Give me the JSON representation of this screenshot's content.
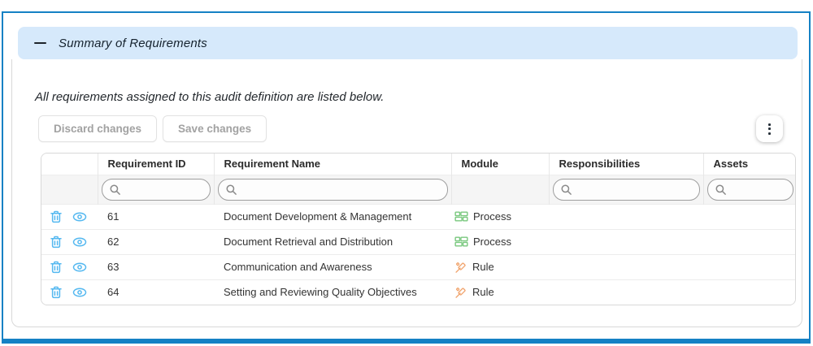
{
  "section": {
    "title": "Summary of Requirements",
    "collapse_icon": "minus-icon",
    "header_bg": "#d6e9fb",
    "frame_color": "#1581c4"
  },
  "intro_text": "All requirements assigned to this audit definition are listed below.",
  "toolbar": {
    "discard_label": "Discard changes",
    "save_label": "Save changes",
    "menu_icon": "kebab-menu-icon"
  },
  "table": {
    "columns": [
      "",
      "Requirement ID",
      "Requirement Name",
      "Module",
      "Responsibilities",
      "Assets"
    ],
    "filter_placeholders": {
      "requirement_id": "",
      "requirement_name": "",
      "responsibilities": "",
      "assets": ""
    },
    "row_action_icons": [
      "trash-icon",
      "eye-icon"
    ],
    "module_icon_colors": {
      "process": "#79c87e",
      "rule": "#f1a46d"
    },
    "action_icon_color": "#54b8f0",
    "rows": [
      {
        "id": "61",
        "name": "Document Development & Management",
        "module": "Process",
        "module_icon": "process-icon",
        "responsibilities": "",
        "assets": ""
      },
      {
        "id": "62",
        "name": "Document Retrieval and Distribution",
        "module": "Process",
        "module_icon": "process-icon",
        "responsibilities": "",
        "assets": ""
      },
      {
        "id": "63",
        "name": "Communication and Awareness",
        "module": "Rule",
        "module_icon": "gavel-icon",
        "responsibilities": "",
        "assets": ""
      },
      {
        "id": "64",
        "name": "Setting and Reviewing Quality Objectives",
        "module": "Rule",
        "module_icon": "gavel-icon",
        "responsibilities": "",
        "assets": ""
      }
    ]
  }
}
